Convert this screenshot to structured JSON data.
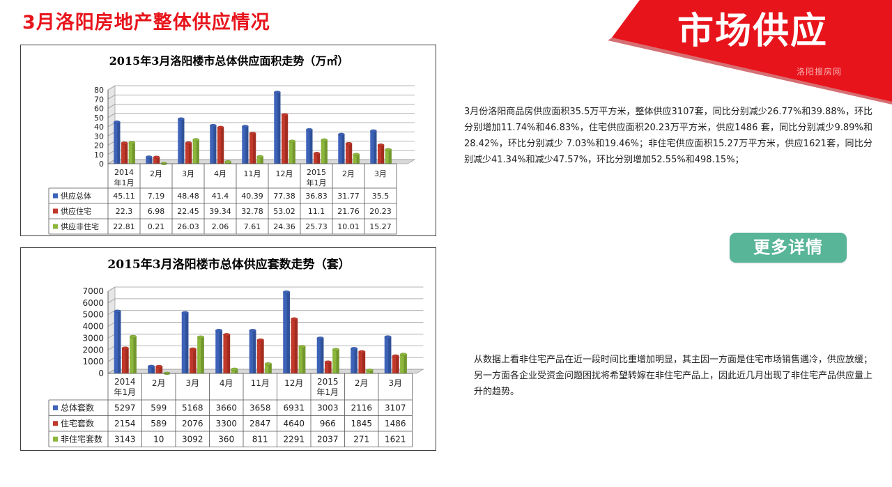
{
  "page": {
    "title": "3月洛阳房地产整体供应情况",
    "banner": "市场供应",
    "watermark": "洛阳搜房网"
  },
  "text": {
    "paragraph1": "3月份洛阳商品房供应面积35.5万平方米，整体供应3107套，同比分别减少26.77%和39.88%，环比分别增加11.74%和46.83%，住宅供应面积20.23万平方米，供应1486 套，同比分别减少9.89%和 28.42%，环比分别减少 7.03%和19.46%；非住宅供应面积15.27万平方米，供应1621套，同比分别减少41.34%和减少47.57%，环比分别增加52.55%和498.15%；",
    "paragraph2": "从数据上看非住宅产品在近一段时间比重增加明显，其主因一方面是住宅市场销售遇冷，供应放缓；另一方面各企业受资金问题困扰将希望转嫁在非住宅产品上，因此近几月出现了非住宅产品供应量上升的趋势。"
  },
  "button": {
    "more_label": "更多详情"
  },
  "colors": {
    "brand_red": "#e8141c",
    "button_green": "#58b597",
    "series_blue": "#3d63b8",
    "series_red": "#c0392b",
    "series_green": "#8cb63c"
  },
  "chart_data": [
    {
      "type": "bar",
      "title": "2015年3月洛阳楼市总体供应面积走势（万㎡）",
      "categories": [
        "2014年1月",
        "2月",
        "3月",
        "4月",
        "11月",
        "12月",
        "2015年1月",
        "2月",
        "3月"
      ],
      "series": [
        {
          "name": "供应总体",
          "values": [
            45.11,
            7.19,
            48.48,
            41.4,
            40.39,
            77.38,
            36.83,
            31.77,
            35.5
          ],
          "table": [
            "45.11",
            "7.19",
            "48.48",
            "41.4",
            "40.39",
            "77.38",
            "36.83",
            "31.77",
            "35.5"
          ]
        },
        {
          "name": "供应住宅",
          "values": [
            22.3,
            6.98,
            22.45,
            39.34,
            32.78,
            53.02,
            11.1,
            21.76,
            20.23
          ],
          "table": [
            "22.3",
            "6.98",
            "22.45",
            "39.34",
            "32.78",
            "53.02",
            "11.1",
            "21.76",
            "20.23"
          ]
        },
        {
          "name": "供应非住宅",
          "values": [
            22.81,
            0.21,
            26.03,
            2.06,
            7.61,
            24.36,
            25.73,
            10.01,
            15.27
          ],
          "table": [
            "22.81",
            "0.21",
            "26.03",
            "2.06",
            "7.61",
            "24.36",
            "25.73",
            "10.01",
            "15.27"
          ]
        }
      ],
      "ylim": [
        0,
        80
      ],
      "yticks": [
        "0",
        "10",
        "20",
        "30",
        "40",
        "50",
        "60",
        "70",
        "80"
      ],
      "legend": "data-table"
    },
    {
      "type": "bar",
      "title": "2015年3月洛阳楼市总体供应套数走势（套）",
      "categories": [
        "2014年1月",
        "2月",
        "3月",
        "4月",
        "11月",
        "12月",
        "2015年1月",
        "2月",
        "3月"
      ],
      "series": [
        {
          "name": "总体套数",
          "values": [
            5297,
            599,
            5168,
            3660,
            3658,
            6931,
            3003,
            2116,
            3107
          ],
          "table": [
            "5297",
            "599",
            "5168",
            "3660",
            "3658",
            "6931",
            "3003",
            "2116",
            "3107"
          ]
        },
        {
          "name": "住宅套数",
          "values": [
            2154,
            589,
            2076,
            3300,
            2847,
            4640,
            966,
            1845,
            1486
          ],
          "table": [
            "2154",
            "589",
            "2076",
            "3300",
            "2847",
            "4640",
            "966",
            "1845",
            "1486"
          ]
        },
        {
          "name": "非住宅套数",
          "values": [
            3143,
            10,
            3092,
            360,
            811,
            2291,
            2037,
            271,
            1621
          ],
          "table": [
            "3143",
            "10",
            "3092",
            "360",
            "811",
            "2291",
            "2037",
            "271",
            "1621"
          ]
        }
      ],
      "ylim": [
        0,
        7000
      ],
      "yticks": [
        "0",
        "1000",
        "2000",
        "3000",
        "4000",
        "5000",
        "6000",
        "7000"
      ],
      "legend": "data-table"
    }
  ]
}
